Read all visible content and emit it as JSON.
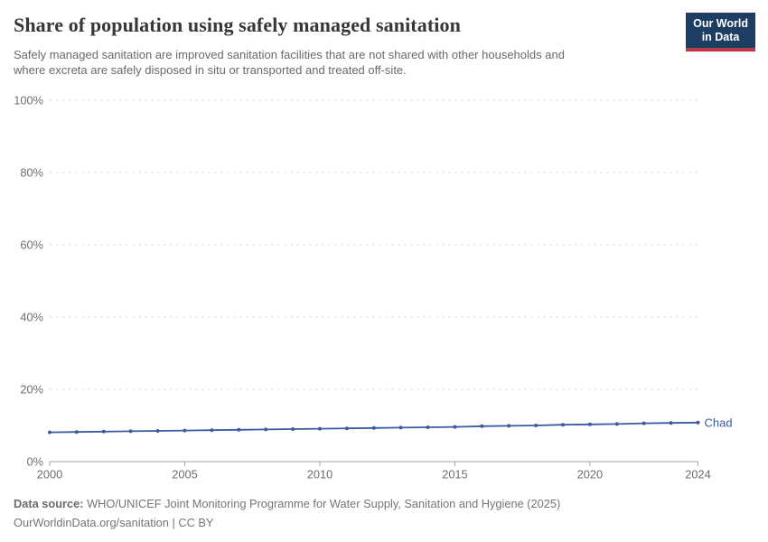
{
  "header": {
    "title": "Share of population using safely managed sanitation",
    "subtitle_lines": [
      "Safely managed sanitation are improved sanitation facilities that are not shared with other households and",
      "where excreta are safely disposed in situ or transported and treated off-site."
    ],
    "logo": {
      "line1": "Our World",
      "line2": "in Data",
      "bg_color": "#1d3d63",
      "accent_color": "#bf3b43"
    }
  },
  "footer": {
    "source_label": "Data source:",
    "source_text": " WHO/UNICEF Joint Monitoring Programme for Water Supply, Sanitation and Hygiene (2025)",
    "license_text": "OurWorldinData.org/sanitation | CC BY"
  },
  "chart_data": {
    "type": "line",
    "title": "Share of population using safely managed sanitation",
    "xlabel": "",
    "ylabel": "",
    "xlim": [
      2000,
      2024
    ],
    "ylim": [
      0,
      100
    ],
    "xticks": [
      2000,
      2005,
      2010,
      2015,
      2020,
      2024
    ],
    "yticks": [
      0,
      20,
      40,
      60,
      80,
      100
    ],
    "ytick_suffix": "%",
    "grid": "horizontal-dashed",
    "grid_color": "#dcdcdc",
    "axis_color": "#a3a3a3",
    "tick_label_color": "#6e6e6e",
    "legend_position": "end-of-line-label",
    "series": [
      {
        "name": "Chad",
        "color": "#3b5ba0",
        "x": [
          2000,
          2001,
          2002,
          2003,
          2004,
          2005,
          2006,
          2007,
          2008,
          2009,
          2010,
          2011,
          2012,
          2013,
          2014,
          2015,
          2016,
          2017,
          2018,
          2019,
          2020,
          2021,
          2022,
          2023,
          2024
        ],
        "values": [
          8.1,
          8.2,
          8.3,
          8.4,
          8.5,
          8.6,
          8.7,
          8.8,
          8.9,
          9.0,
          9.1,
          9.2,
          9.3,
          9.4,
          9.5,
          9.6,
          9.8,
          9.9,
          10.0,
          10.2,
          10.3,
          10.4,
          10.6,
          10.7,
          10.8
        ]
      }
    ]
  }
}
